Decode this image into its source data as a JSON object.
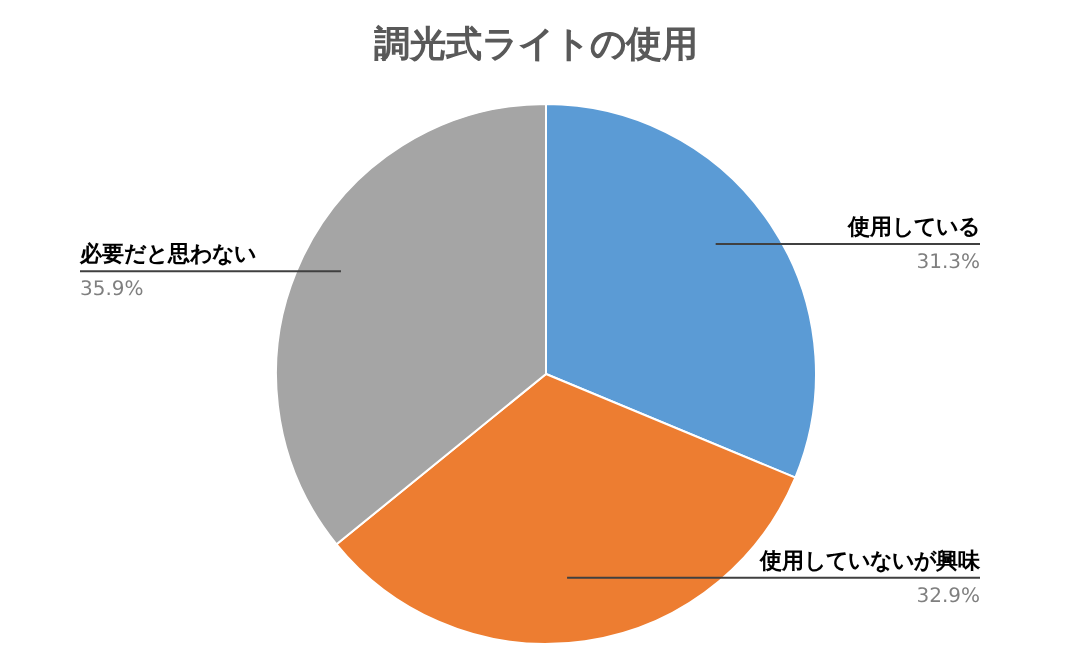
{
  "chart_data": {
    "type": "pie",
    "title": "調光式ライトの使用",
    "categories": [
      "使用している",
      "使用していないが興味",
      "必要だと思わない"
    ],
    "values": [
      31.3,
      32.9,
      35.9
    ],
    "colors": [
      "#5b9bd5",
      "#ed7d31",
      "#a5a5a5"
    ],
    "value_labels": [
      "31.3%",
      "32.9%",
      "35.9%"
    ],
    "legend": false
  }
}
